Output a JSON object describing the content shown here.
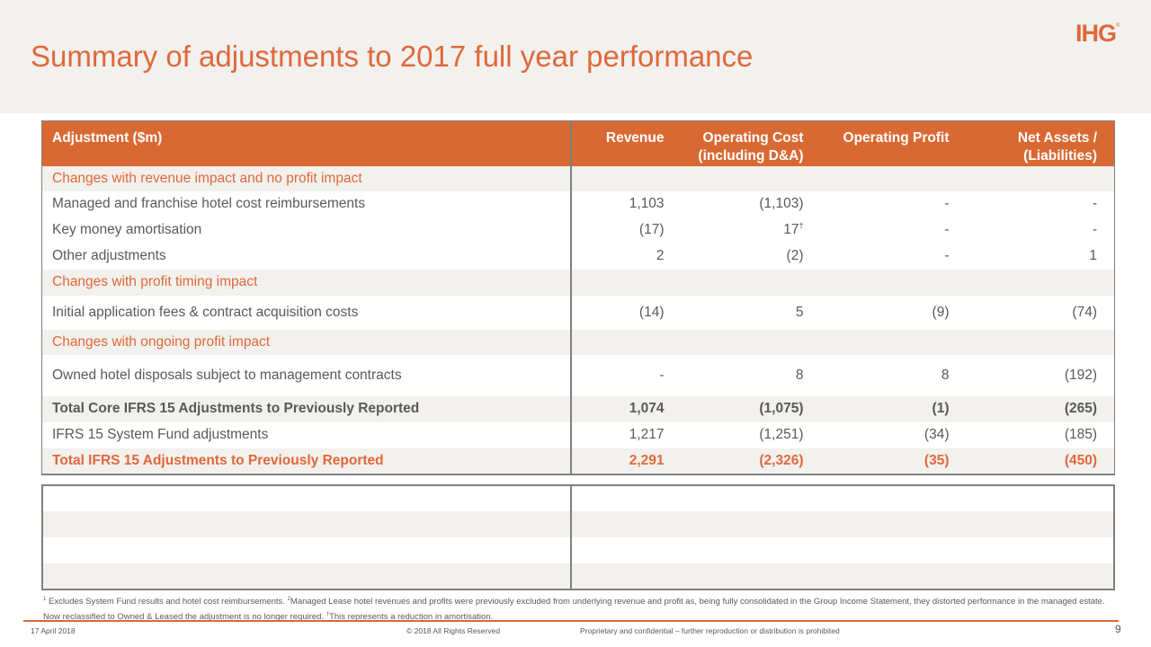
{
  "header": {
    "title": "Summary of adjustments to 2017 full year performance",
    "logo": "IHG",
    "logo_mark": "®"
  },
  "table": {
    "columns": [
      "Adjustment ($m)",
      "Revenue",
      "Operating Cost",
      "(including D&A)",
      "Operating Profit",
      "Net Assets /",
      "(Liabilities)"
    ],
    "rows": [
      {
        "type": "section",
        "label": "Changes with revenue impact and no profit impact"
      },
      {
        "type": "row",
        "label": "Managed and franchise hotel cost reimbursements",
        "revenue": "1,103",
        "cost": "(1,103)",
        "profit": "-",
        "net": "-"
      },
      {
        "type": "row",
        "label": "Key money amortisation",
        "revenue": "(17)",
        "cost": "17",
        "cost_mark": "†",
        "profit": "-",
        "net": "-"
      },
      {
        "type": "row",
        "label": "Other adjustments",
        "revenue": "2",
        "cost": "(2)",
        "profit": "-",
        "net": "1"
      },
      {
        "type": "section",
        "label": "Changes with profit timing impact"
      },
      {
        "type": "row",
        "label": "Initial application fees & contract acquisition costs",
        "revenue": "(14)",
        "cost": "5",
        "profit": "(9)",
        "net": "(74)"
      },
      {
        "type": "section",
        "label": "Changes with ongoing profit impact"
      },
      {
        "type": "row",
        "label": "Owned hotel disposals subject to management contracts",
        "revenue": "-",
        "cost": "8",
        "profit": "8",
        "net": "(192)"
      },
      {
        "type": "bold",
        "label": "Total Core IFRS 15 Adjustments to Previously Reported",
        "revenue": "1,074",
        "cost": "(1,075)",
        "profit": "(1)",
        "net": "(265)"
      },
      {
        "type": "row",
        "label": "IFRS 15 System Fund adjustments",
        "revenue": "1,217",
        "cost": "(1,251)",
        "profit": "(34)",
        "net": "(185)"
      },
      {
        "type": "total",
        "label": "Total IFRS 15 Adjustments to Previously Reported",
        "revenue": "2,291",
        "cost": "(2,326)",
        "profit": "(35)",
        "net": "(450)"
      }
    ]
  },
  "footnotes": {
    "n1": "1",
    "t1": " Excludes System Fund results and hotel cost reimbursements. ",
    "n2": "2",
    "t2": "Managed Lease hotel revenues and profits were previously excluded from underlying revenue and profit as, being fully consolidated in the Group Income Statement, they distorted performance in the managed estate. Now reclassified to Owned & Leased the adjustment is no longer required. ",
    "n3": "†",
    "t3": "This represents a reduction in amortisation."
  },
  "footer": {
    "date": "17 April 2018",
    "copyright": "© 2018 All Rights Reserved",
    "confidential": "Proprietary and confidential – further reproduction or distribution is prohibited",
    "page": "9"
  },
  "colors": {
    "accent": "#d96932",
    "title": "#e0683a",
    "band": "#f2f1ed"
  }
}
